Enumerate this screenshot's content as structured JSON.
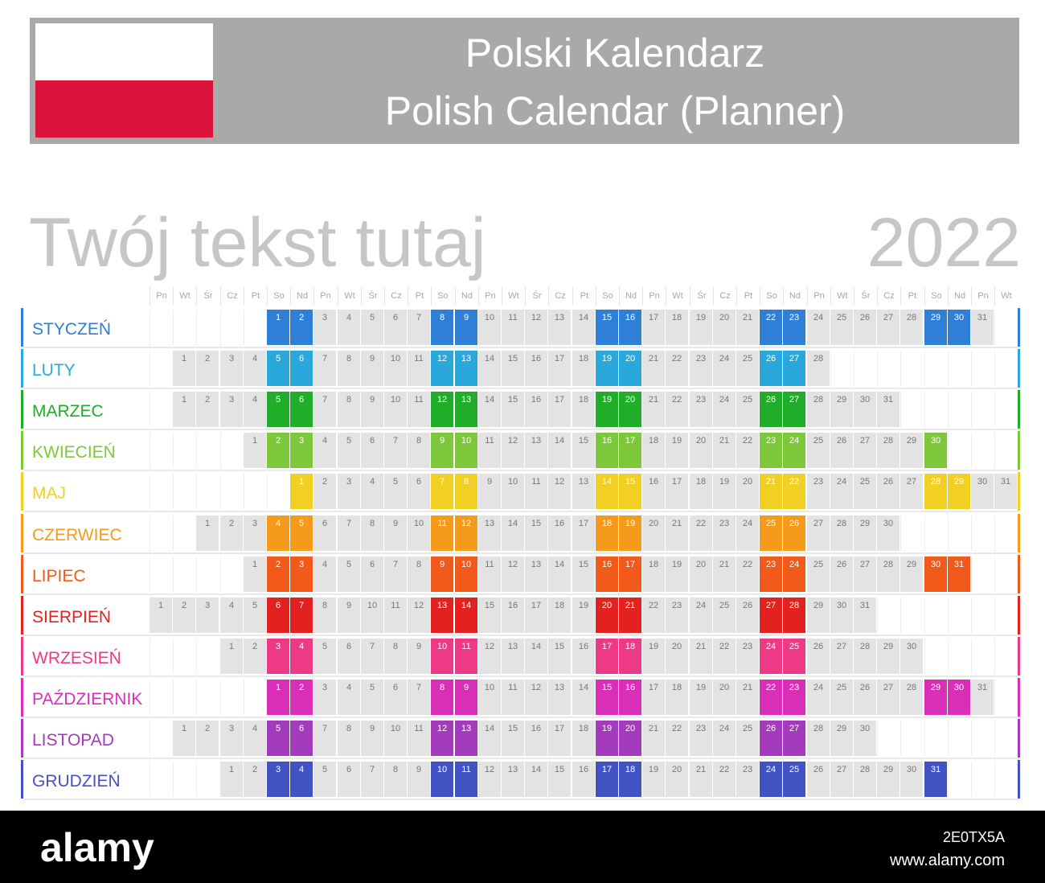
{
  "header": {
    "title_pl": "Polski Kalendarz",
    "title_en": "Polish Calendar (Planner)",
    "subtitle": "Twój tekst tutaj",
    "year": "2022"
  },
  "flag": {
    "top_color": "#ffffff",
    "bottom_color": "#dc143c"
  },
  "weekday_pattern": [
    "Pn",
    "Wt",
    "Śr",
    "Cz",
    "Pt",
    "So",
    "Nd"
  ],
  "weekday_header": [
    "Pn",
    "Wt",
    "Śr",
    "Cz",
    "Pt",
    "So",
    "Nd",
    "Pn",
    "Wt",
    "Śr",
    "Cz",
    "Pt",
    "So",
    "Nd",
    "Pn",
    "Wt",
    "Śr",
    "Cz",
    "Pt",
    "So",
    "Nd",
    "Pn",
    "Wt",
    "Śr",
    "Cz",
    "Pt",
    "So",
    "Nd",
    "Pn",
    "Wt",
    "Śr",
    "Cz",
    "Pt",
    "So",
    "Nd",
    "Pn",
    "Wt"
  ],
  "months": [
    {
      "name": "STYCZEŃ",
      "color": "#2e7fd6",
      "offset": 5,
      "days": 31
    },
    {
      "name": "LUTY",
      "color": "#2aa8dc",
      "offset": 1,
      "days": 28
    },
    {
      "name": "MARZEC",
      "color": "#1fad2a",
      "offset": 1,
      "days": 31
    },
    {
      "name": "KWIECIEŃ",
      "color": "#7dc83a",
      "offset": 4,
      "days": 30
    },
    {
      "name": "MAJ",
      "color": "#f1cf23",
      "offset": 6,
      "days": 31
    },
    {
      "name": "CZERWIEC",
      "color": "#f59a1b",
      "offset": 2,
      "days": 30
    },
    {
      "name": "LIPIEC",
      "color": "#f25a1c",
      "offset": 4,
      "days": 31
    },
    {
      "name": "SIERPIEŃ",
      "color": "#e3221f",
      "offset": 0,
      "days": 31
    },
    {
      "name": "WRZESIEŃ",
      "color": "#ee3a86",
      "offset": 3,
      "days": 30
    },
    {
      "name": "PAŹDZIERNIK",
      "color": "#d92fb8",
      "offset": 5,
      "days": 31
    },
    {
      "name": "LISTOPAD",
      "color": "#a43bbd",
      "offset": 1,
      "days": 30
    },
    {
      "name": "GRUDZIEŃ",
      "color": "#4153c3",
      "offset": 3,
      "days": 31
    }
  ],
  "watermark": {
    "logo": "alamy",
    "image_id": "2E0TX5A",
    "url": "www.alamy.com"
  }
}
